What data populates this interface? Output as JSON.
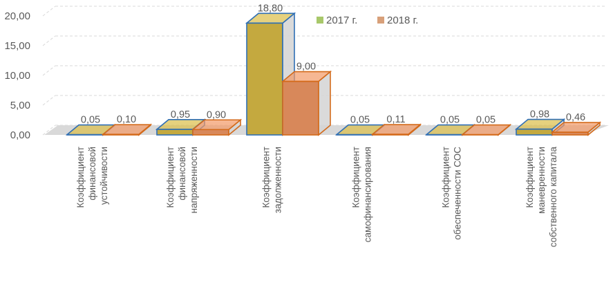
{
  "chart_data": {
    "type": "bar",
    "style": "3d-clustered-column",
    "categories": [
      [
        "Коэффициент",
        "финансовой",
        "устойчивости"
      ],
      [
        "Коэффициент",
        "финансовой",
        "напряженности"
      ],
      [
        "Коэффициент",
        "задолженности"
      ],
      [
        "Коэффициент",
        "самофинансирования"
      ],
      [
        "Коэффициент",
        "обеспеченности СОС"
      ],
      [
        "Коэффициент",
        "маневренности",
        "собственного капитала"
      ]
    ],
    "series": [
      {
        "name": "2017 г.",
        "values": [
          0.05,
          0.95,
          18.8,
          0.05,
          0.05,
          0.98
        ],
        "labels": [
          "0,05",
          "0,95",
          "18,80",
          "0,05",
          "0,05",
          "0,98"
        ],
        "fill": "#c4a93f",
        "edge": "#2f6fb5"
      },
      {
        "name": "2018 г.",
        "values": [
          0.1,
          0.9,
          9.0,
          0.11,
          0.05,
          0.46
        ],
        "labels": [
          "0,10",
          "0,90",
          "9,00",
          "0,11",
          "0,05",
          "0,46"
        ],
        "fill": "#d8885a",
        "edge": "#d46a1a"
      }
    ],
    "yticks": [
      "0,00",
      "5,00",
      "10,00",
      "15,00",
      "20,00"
    ],
    "ylim": [
      0,
      20
    ],
    "grid": true,
    "legend": {
      "position": "top-right",
      "entries": [
        "2017 г.",
        "2018 г."
      ],
      "swatch_colors": [
        "#a8c86a",
        "#d8a07a"
      ]
    },
    "title": "",
    "xlabel": "",
    "ylabel": ""
  }
}
